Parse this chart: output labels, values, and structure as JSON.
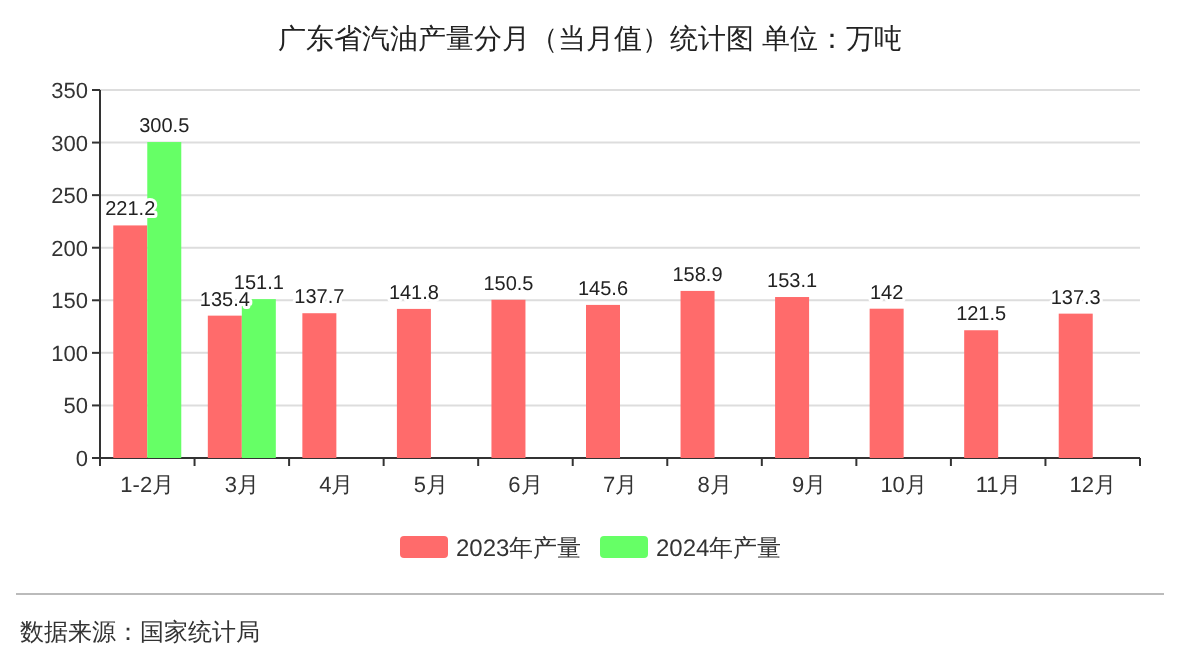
{
  "chart_data": {
    "type": "bar",
    "title": "广东省汽油产量分月（当月值）统计图 单位：万吨",
    "categories": [
      "1-2月",
      "3月",
      "4月",
      "5月",
      "6月",
      "7月",
      "8月",
      "9月",
      "10月",
      "11月",
      "12月"
    ],
    "series": [
      {
        "name": "2023年产量",
        "color": "#ff6b6b",
        "values": [
          221.2,
          135.4,
          137.7,
          141.8,
          150.5,
          145.6,
          158.9,
          153.1,
          142,
          121.5,
          137.3
        ]
      },
      {
        "name": "2024年产量",
        "color": "#66ff66",
        "values": [
          300.5,
          151.1,
          null,
          null,
          null,
          null,
          null,
          null,
          null,
          null,
          null
        ]
      }
    ],
    "ylim": [
      0,
      350
    ],
    "yticks": [
      0,
      50,
      100,
      150,
      200,
      250,
      300,
      350
    ],
    "grid": "y",
    "legend": "bottom",
    "data_labels": true,
    "annotations": [
      "数据来源：国家统计局"
    ]
  }
}
